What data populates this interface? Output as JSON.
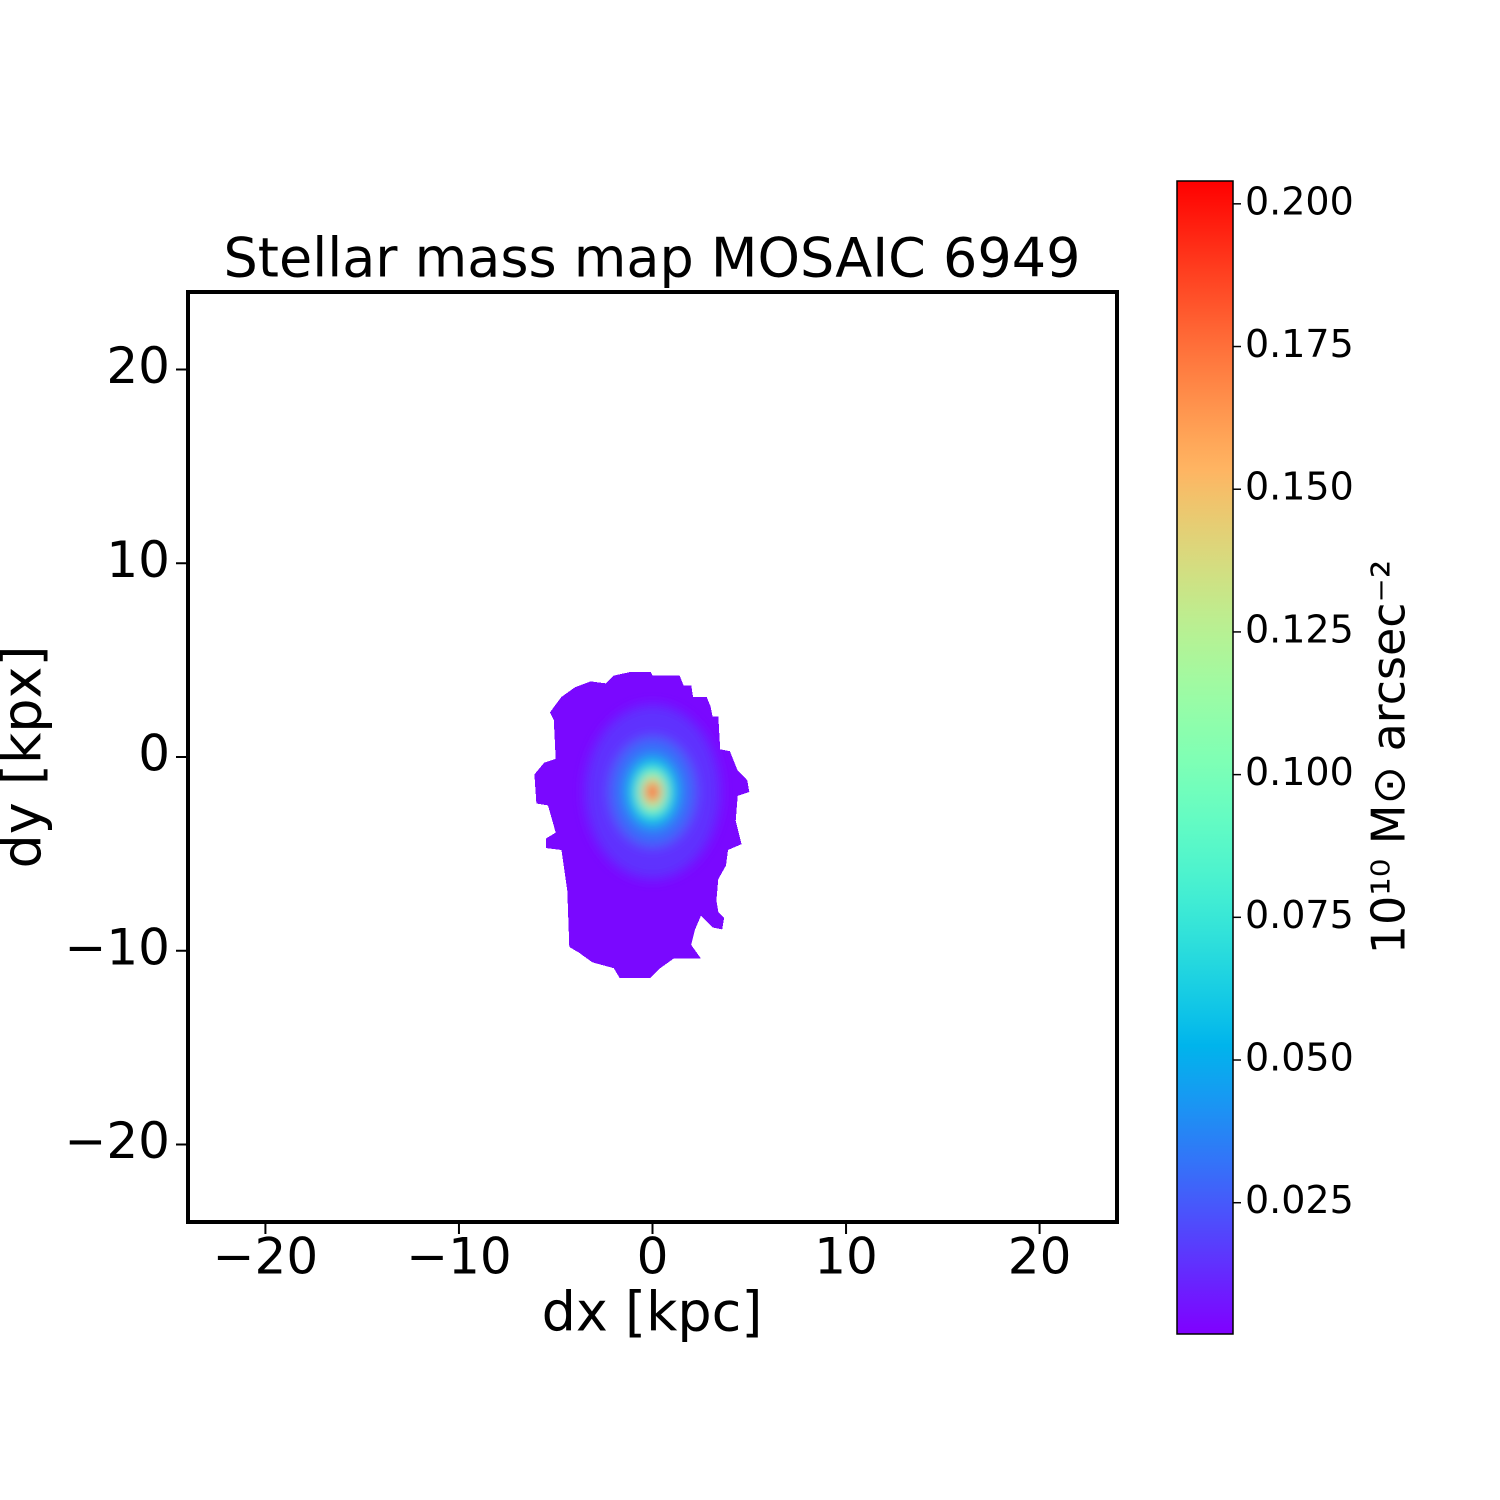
{
  "chart_data": {
    "type": "heatmap",
    "title": "Stellar mass map MOSAIC 6949",
    "x_label": "dx [kpc]",
    "y_label": "dy [kpx]",
    "colorbar_label": "10¹⁰ M⊙ arcsec⁻²",
    "colormap": "rainbow",
    "xlim": [
      -24,
      24
    ],
    "ylim": [
      -24,
      24
    ],
    "xticks": [
      {
        "value": -20,
        "label": "−20"
      },
      {
        "value": -10,
        "label": "−10"
      },
      0,
      10,
      20
    ],
    "yticks": [
      {
        "value": -20,
        "label": "−20"
      },
      {
        "value": -10,
        "label": "−10"
      },
      0,
      10,
      20
    ],
    "clim": [
      0.002,
      0.204
    ],
    "cticks": [
      0.025,
      {
        "value": 0.05,
        "label": "0.050"
      },
      0.075,
      {
        "value": 0.1,
        "label": "0.100"
      },
      0.125,
      {
        "value": 0.15,
        "label": "0.150"
      },
      0.175,
      {
        "value": 0.2,
        "label": "0.200"
      }
    ],
    "background_value": 0.004,
    "outline": {
      "x": [
        -1.1,
        -0.1,
        0,
        1.4,
        1.6,
        2.0,
        2.1,
        2.8,
        3.0,
        3.1,
        3.4,
        3.5,
        4.0,
        4.4,
        4.9,
        5.0,
        4.4,
        4.3,
        4.6,
        3.9,
        3.8,
        3.4,
        3.3,
        3.4,
        3.7,
        3.6,
        3.1,
        2.5,
        2.2,
        2.0,
        2.5,
        1.1,
        0.4,
        -0.1,
        -1.7,
        -2.0,
        -3.1,
        -3.8,
        -4.3,
        -4.4,
        -4.7,
        -5.5,
        -5.5,
        -5.0,
        -5.4,
        -6.0,
        -6.1,
        -5.6,
        -5.0,
        -5.1,
        -5.3,
        -4.7,
        -4.0,
        -3.2,
        -2.4,
        -2.0
      ],
      "y": [
        4.4,
        4.4,
        4.2,
        4.2,
        3.7,
        3.7,
        3.1,
        3.1,
        2.6,
        2.1,
        2.1,
        0.4,
        0.3,
        -0.7,
        -1.2,
        -1.8,
        -2.0,
        -3.3,
        -4.5,
        -4.8,
        -5.6,
        -6.3,
        -7.4,
        -8.0,
        -8.3,
        -8.9,
        -8.8,
        -8.2,
        -8.9,
        -9.7,
        -10.4,
        -10.4,
        -10.9,
        -11.4,
        -11.4,
        -10.9,
        -10.6,
        -10.1,
        -9.8,
        -6.9,
        -4.8,
        -4.7,
        -4.2,
        -3.9,
        -2.5,
        -2.4,
        -0.9,
        -0.3,
        -0.1,
        1.9,
        2.3,
        3.1,
        3.6,
        3.9,
        3.8,
        4.2
      ]
    },
    "map_center": {
      "x": 0,
      "y": -1.8
    },
    "levels": [
      {
        "value": 0.015,
        "rx": 3.5,
        "ry": 4.5
      },
      {
        "value": 0.03,
        "rx": 2.2,
        "ry": 2.8
      },
      {
        "value": 0.05,
        "rx": 1.4,
        "ry": 1.9
      },
      {
        "value": 0.075,
        "rx": 1.0,
        "ry": 1.4
      },
      {
        "value": 0.1,
        "rx": 0.75,
        "ry": 1.1
      },
      {
        "value": 0.15,
        "rx": 0.5,
        "ry": 0.75
      },
      {
        "value": 0.2,
        "rx": 0.3,
        "ry": 0.45
      }
    ]
  }
}
